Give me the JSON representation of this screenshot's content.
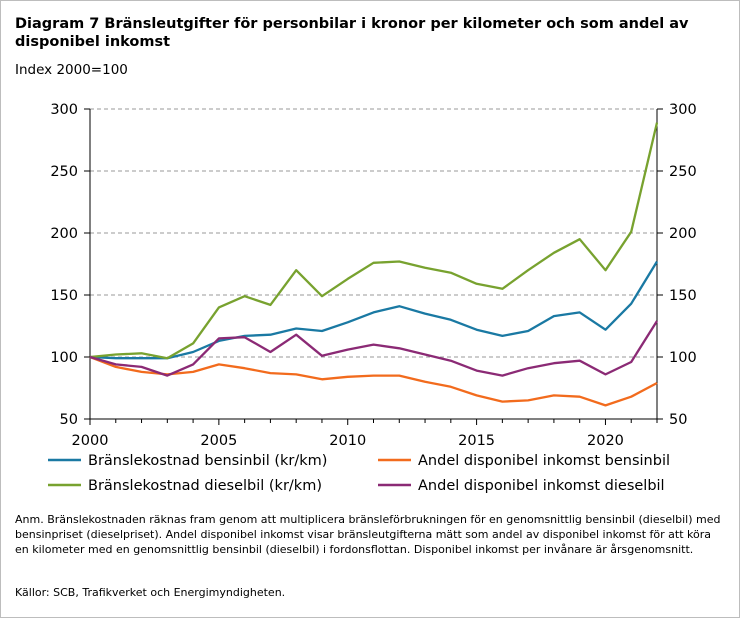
{
  "title": "Diagram 7 Bränsleutgifter för personbilar i kronor per kilometer och som andel av disponibel inkomst",
  "subtitle": "Index 2000=100",
  "note": "Anm. Bränslekostnaden räknas fram genom att multiplicera bränsleförbrukningen för en genomsnittlig bensinbil (dieselbil) med bensinpriset (dieselpriset). Andel disponibel inkomst visar bränsleutgifterna mätt som andel av disponibel inkomst för att köra en kilometer med en genomsnittlig bensinbil (dieselbil) i fordonsflottan. Disponibel inkomst per invånare är årsgenomsnitt.",
  "source": "Källor: SCB, Trafikverket och Energimyndigheten.",
  "chart_data": {
    "type": "line",
    "x": [
      2000,
      2001,
      2002,
      2003,
      2004,
      2005,
      2006,
      2007,
      2008,
      2009,
      2010,
      2011,
      2012,
      2013,
      2014,
      2015,
      2016,
      2017,
      2018,
      2019,
      2020,
      2021,
      2022
    ],
    "xticks": [
      2000,
      2005,
      2010,
      2015,
      2020
    ],
    "ylim": [
      50,
      300
    ],
    "yticks": [
      50,
      100,
      150,
      200,
      250,
      300
    ],
    "grid": true,
    "legend": "bottom",
    "series": [
      {
        "name": "Bränslekostnad bensinbil (kr/km)",
        "color": "#1a79a3",
        "values": [
          100,
          99,
          99,
          99,
          104,
          113,
          117,
          118,
          123,
          121,
          128,
          136,
          141,
          135,
          130,
          122,
          117,
          121,
          133,
          136,
          122,
          143,
          177
        ]
      },
      {
        "name": "Andel disponibel inkomst bensinbil",
        "color": "#f26b1d",
        "values": [
          100,
          92,
          88,
          86,
          88,
          94,
          91,
          87,
          86,
          82,
          84,
          85,
          85,
          80,
          76,
          69,
          64,
          65,
          69,
          68,
          61,
          68,
          79
        ]
      },
      {
        "name": "Bränslekostnad dieselbil (kr/km)",
        "color": "#78a22f",
        "values": [
          100,
          102,
          103,
          99,
          111,
          140,
          149,
          142,
          170,
          149,
          163,
          176,
          177,
          172,
          168,
          159,
          155,
          170,
          184,
          195,
          170,
          201,
          289
        ]
      },
      {
        "name": "Andel disponibel inkomst dieselbil",
        "color": "#8b2a75",
        "values": [
          100,
          94,
          92,
          85,
          94,
          115,
          116,
          104,
          118,
          101,
          106,
          110,
          107,
          102,
          97,
          89,
          85,
          91,
          95,
          97,
          86,
          96,
          129
        ]
      }
    ]
  }
}
